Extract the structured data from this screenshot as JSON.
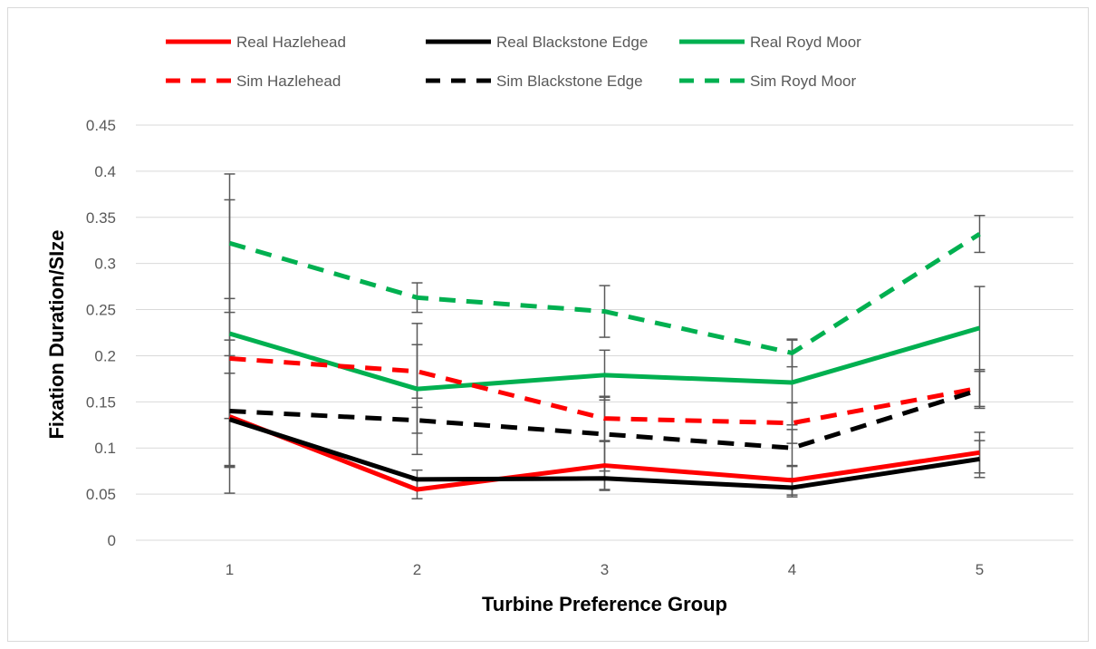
{
  "chart_data": {
    "type": "line",
    "title": "",
    "xlabel": "Turbine Preference Group",
    "ylabel": "Fixation Duration/SIze",
    "categories": [
      "1",
      "2",
      "3",
      "4",
      "5"
    ],
    "ylim": [
      0,
      0.45
    ],
    "yticks": [
      0,
      0.05,
      0.1,
      0.15,
      0.2,
      0.25,
      0.3,
      0.35,
      0.4,
      0.45
    ],
    "ytick_labels": [
      "0",
      "0.05",
      "0.1",
      "0.15",
      "0.2",
      "0.25",
      "0.3",
      "0.35",
      "0.4",
      "0.45"
    ],
    "grid": true,
    "legend_position": "top",
    "series": [
      {
        "name": "Real Hazlehead",
        "color": "#ff0000",
        "dashed": false,
        "values": [
          0.134,
          0.055,
          0.081,
          0.065,
          0.095
        ],
        "errors": [
          0.083,
          0.01,
          0.026,
          0.016,
          0.022
        ]
      },
      {
        "name": "Real Blackstone Edge",
        "color": "#000000",
        "dashed": false,
        "values": [
          0.131,
          0.066,
          0.067,
          0.057,
          0.088
        ],
        "errors": [
          0.05,
          0.01,
          0.013,
          0.01,
          0.02
        ]
      },
      {
        "name": "Real Royd Moor",
        "color": "#00b050",
        "dashed": false,
        "values": [
          0.224,
          0.164,
          0.179,
          0.171,
          0.23
        ],
        "errors": [
          0.145,
          0.071,
          0.027,
          0.046,
          0.045
        ]
      },
      {
        "name": "Sim Hazlehead",
        "color": "#ff0000",
        "dashed": true,
        "values": [
          0.197,
          0.183,
          0.132,
          0.127,
          0.165
        ],
        "errors": [
          0.065,
          0.029,
          0.024,
          0.022,
          0.02
        ]
      },
      {
        "name": "Sim Blackstone Edge",
        "color": "#000000",
        "dashed": true,
        "values": [
          0.14,
          0.13,
          0.115,
          0.1,
          0.163
        ],
        "errors": [
          0.06,
          0.014,
          0.04,
          0.02,
          0.02
        ]
      },
      {
        "name": "Sim Royd Moor",
        "color": "#00b050",
        "dashed": true,
        "values": [
          0.322,
          0.263,
          0.248,
          0.203,
          0.332
        ],
        "errors": [
          0.075,
          0.016,
          0.028,
          0.015,
          0.02
        ]
      }
    ]
  }
}
